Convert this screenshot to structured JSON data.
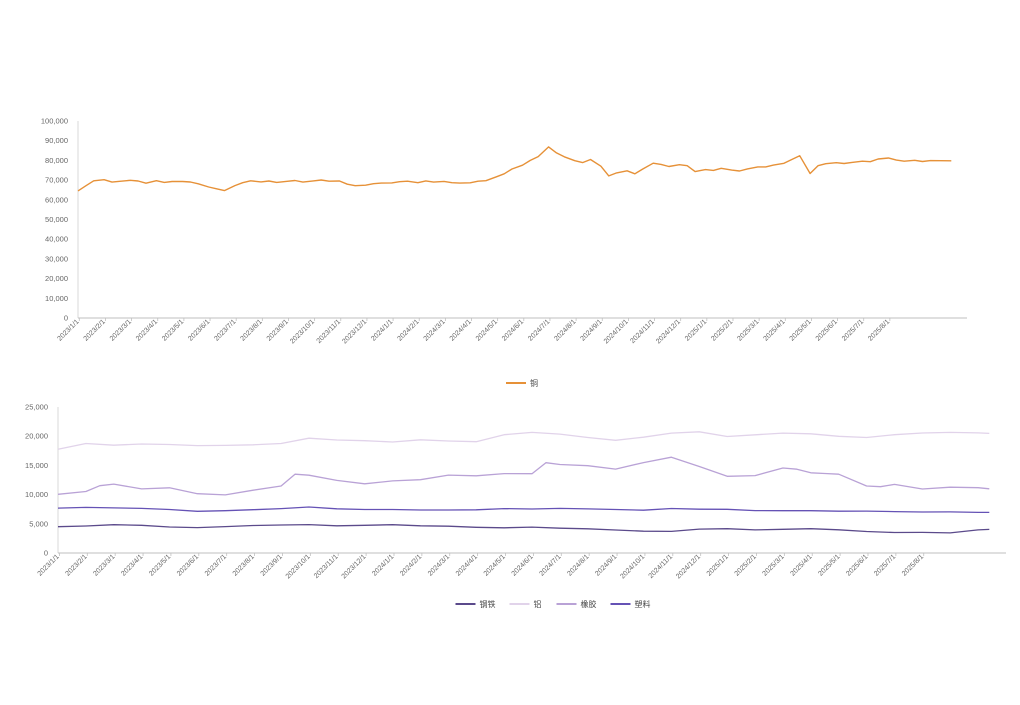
{
  "chart_data": [
    {
      "type": "line",
      "title": "",
      "xlabel": "",
      "ylabel": "",
      "ylim": [
        0,
        100000
      ],
      "y_ticks": [
        "0",
        "10,000",
        "20,000",
        "30,000",
        "40,000",
        "50,000",
        "60,000",
        "70,000",
        "80,000",
        "90,000",
        "100,000"
      ],
      "x_ticks": [
        "2023/1/1",
        "2023/2/1",
        "2023/3/1",
        "2023/4/1",
        "2023/5/1",
        "2023/6/1",
        "2023/7/1",
        "2023/8/1",
        "2023/9/1",
        "2023/10/1",
        "2023/11/1",
        "2023/12/1",
        "2024/1/1",
        "2024/2/1",
        "2024/3/1",
        "2024/4/1",
        "2024/5/1",
        "2024/6/1",
        "2024/7/1",
        "2024/8/1",
        "2024/9/1",
        "2024/10/1",
        "2024/11/1",
        "2024/12/1",
        "2025/1/1",
        "2025/2/1",
        "2025/3/1",
        "2025/4/1",
        "2025/5/1",
        "2025/6/1",
        "2025/7/1",
        "2025/8/1"
      ],
      "x_range": [
        0,
        34
      ],
      "grid": false,
      "legend": "bottom",
      "series": [
        {
          "name": "铜",
          "color": "#e69138",
          "x": [
            0,
            0.3,
            0.6,
            1,
            1.3,
            1.6,
            2,
            2.3,
            2.6,
            3,
            3.3,
            3.6,
            4,
            4.3,
            4.6,
            5,
            5.3,
            5.6,
            6,
            6.3,
            6.6,
            7,
            7.3,
            7.6,
            8,
            8.3,
            8.6,
            9,
            9.3,
            9.6,
            10,
            10.3,
            10.6,
            11,
            11.3,
            11.6,
            12,
            12.3,
            12.6,
            13,
            13.3,
            13.6,
            14,
            14.3,
            14.6,
            15,
            15.3,
            15.6,
            16,
            16.3,
            16.6,
            17,
            17.3,
            17.6,
            18,
            18.3,
            18.6,
            19,
            19.3,
            19.6,
            20,
            20.3,
            20.6,
            21,
            21.3,
            21.6,
            22,
            22.3,
            22.6,
            23,
            23.3,
            23.6,
            24,
            24.3,
            24.6,
            25,
            25.3,
            25.6,
            26,
            26.3,
            26.6,
            27,
            27.3,
            27.6,
            28,
            28.3,
            28.6,
            29,
            29.3,
            29.6,
            30,
            30.3,
            30.6,
            31,
            31.3,
            31.6,
            32,
            32.3,
            32.6,
            33,
            33.4
          ],
          "y": [
            64500,
            67000,
            69500,
            70000,
            68800,
            69200,
            69800,
            69500,
            68500,
            69800,
            69000,
            69500,
            69500,
            69200,
            68200,
            66500,
            65500,
            64500,
            67000,
            68500,
            69500,
            69000,
            69500,
            68900,
            69500,
            70000,
            69200,
            69800,
            70200,
            69500,
            69500,
            67800,
            67000,
            67200,
            68000,
            68300,
            68500,
            69200,
            69500,
            68800,
            69800,
            69200,
            69500,
            68800,
            68500,
            68600,
            69300,
            69500,
            71500,
            73000,
            75500,
            77500,
            80000,
            82000,
            87000,
            84000,
            82000,
            80000,
            79000,
            80500,
            77000,
            72000,
            73500,
            74500,
            73000,
            75500,
            78500,
            78000,
            77000,
            78000,
            77500,
            74500,
            75500,
            75000,
            76000,
            75000,
            74500,
            75500,
            76500,
            76500,
            77500,
            78500,
            80500,
            82500,
            73500,
            77500,
            78500,
            79000,
            78500,
            79000,
            79500,
            79200,
            80500,
            81000,
            80000,
            79500,
            80000,
            79500,
            80000,
            80000,
            80000
          ]
        }
      ]
    },
    {
      "type": "line",
      "title": "",
      "xlabel": "",
      "ylabel": "",
      "ylim": [
        0,
        25000
      ],
      "y_ticks": [
        "0",
        "5,000",
        "10,000",
        "15,000",
        "20,000",
        "25,000"
      ],
      "x_ticks": [
        "2023/1/1",
        "2023/2/1",
        "2023/3/1",
        "2023/4/1",
        "2023/5/1",
        "2023/6/1",
        "2023/7/1",
        "2023/8/1",
        "2023/9/1",
        "2023/10/1",
        "2023/11/1",
        "2023/12/1",
        "2024/1/1",
        "2024/2/1",
        "2024/3/1",
        "2024/4/1",
        "2024/5/1",
        "2024/6/1",
        "2024/7/1",
        "2024/8/1",
        "2024/9/1",
        "2024/10/1",
        "2024/11/1",
        "2024/12/1",
        "2025/1/1",
        "2025/2/1",
        "2025/3/1",
        "2025/4/1",
        "2025/5/1",
        "2025/6/1",
        "2025/7/1",
        "2025/8/1"
      ],
      "x_range": [
        0,
        34
      ],
      "grid": false,
      "legend": "bottom",
      "series": [
        {
          "name": "钢铁",
          "color": "#5b4a8b",
          "x": [
            0,
            1,
            2,
            3,
            4,
            5,
            6,
            7,
            8,
            9,
            10,
            11,
            12,
            13,
            14,
            15,
            16,
            17,
            18,
            19,
            20,
            21,
            22,
            23,
            24,
            25,
            26,
            27,
            28,
            29,
            30,
            31,
            32,
            33,
            33.4
          ],
          "y": [
            4500,
            4600,
            4800,
            4700,
            4400,
            4300,
            4500,
            4700,
            4800,
            4900,
            4700,
            4800,
            4900,
            4700,
            4600,
            4400,
            4300,
            4400,
            4200,
            4100,
            3900,
            3700,
            3700,
            4100,
            4200,
            4000,
            4100,
            4200,
            4000,
            3700,
            3500,
            3500,
            3400,
            3900,
            4000
          ]
        },
        {
          "name": "铝",
          "color": "#e1d3ea",
          "x": [
            0,
            1,
            2,
            3,
            4,
            5,
            6,
            7,
            8,
            9,
            10,
            11,
            12,
            13,
            14,
            15,
            16,
            17,
            18,
            19,
            20,
            21,
            22,
            23,
            24,
            25,
            26,
            27,
            28,
            29,
            30,
            31,
            32,
            33,
            33.4
          ],
          "y": [
            17800,
            18800,
            18500,
            18700,
            18600,
            18400,
            18400,
            18500,
            18700,
            19600,
            19300,
            19200,
            19000,
            19400,
            19200,
            19100,
            20300,
            20700,
            20400,
            19800,
            19300,
            19800,
            20500,
            20700,
            19900,
            20200,
            20500,
            20400,
            20000,
            19800,
            20300,
            20600,
            20700,
            20600,
            20500
          ]
        },
        {
          "name": "橡胶",
          "color": "#b9a2d6",
          "x": [
            0,
            1,
            1.5,
            2,
            3,
            4,
            5,
            6,
            7,
            8,
            8.5,
            9,
            10,
            11,
            12,
            13,
            14,
            15,
            16,
            17,
            17.5,
            18,
            19,
            20,
            21,
            22,
            23,
            24,
            25,
            26,
            26.5,
            27,
            27.5,
            28,
            29,
            29.5,
            30,
            31,
            32,
            33,
            33.4
          ],
          "y": [
            10000,
            10500,
            11500,
            11800,
            11000,
            11200,
            10200,
            10000,
            10800,
            11500,
            13500,
            13300,
            12400,
            11800,
            12300,
            12500,
            13300,
            13200,
            13600,
            13600,
            15500,
            15200,
            15000,
            14400,
            15500,
            16400,
            14800,
            13100,
            13200,
            14500,
            14300,
            13700,
            13600,
            13500,
            11500,
            11400,
            11800,
            11000,
            11300,
            11200,
            11000
          ]
        },
        {
          "name": "塑料",
          "color": "#6552b5",
          "x": [
            0,
            1,
            2,
            3,
            4,
            5,
            6,
            7,
            8,
            9,
            10,
            11,
            12,
            13,
            14,
            15,
            16,
            17,
            18,
            19,
            20,
            21,
            22,
            23,
            24,
            25,
            26,
            27,
            28,
            29,
            30,
            31,
            32,
            33,
            33.4
          ],
          "y": [
            7700,
            7800,
            7700,
            7600,
            7400,
            7100,
            7200,
            7400,
            7600,
            7900,
            7600,
            7500,
            7500,
            7400,
            7400,
            7400,
            7600,
            7500,
            7600,
            7500,
            7400,
            7300,
            7600,
            7500,
            7500,
            7300,
            7300,
            7300,
            7200,
            7200,
            7100,
            7000,
            7000,
            6900,
            6900
          ]
        }
      ]
    }
  ]
}
